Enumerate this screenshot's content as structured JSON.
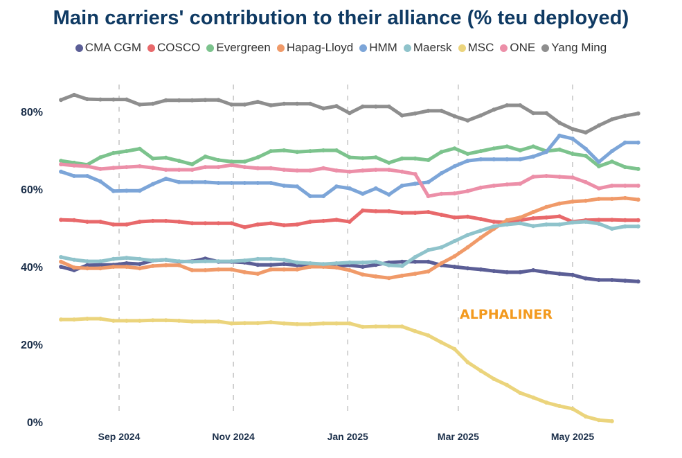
{
  "chart_data": {
    "type": "line",
    "title": "Main carriers' contribution to their alliance (% teu deployed)",
    "xlabel": "",
    "ylabel": "",
    "ylim": [
      0,
      90
    ],
    "y_ticks": [
      "0%",
      "20%",
      "40%",
      "60%",
      "80%"
    ],
    "y_tick_values": [
      0,
      20,
      40,
      60,
      80
    ],
    "x_ticks": [
      "Sep 2024",
      "Nov 2024",
      "Jan 2025",
      "Mar 2025",
      "May 2025"
    ],
    "x_tick_dates": [
      "2024-09-01",
      "2024-11-01",
      "2025-01-01",
      "2025-03-01",
      "2025-05-01"
    ],
    "grid": "vertical dashed lines at x ticks",
    "legend_position": "top",
    "watermark": "ALPHALINER",
    "x": [
      "2024-08-01",
      "2024-08-08",
      "2024-08-15",
      "2024-08-22",
      "2024-08-29",
      "2024-09-05",
      "2024-09-12",
      "2024-09-19",
      "2024-09-26",
      "2024-10-03",
      "2024-10-10",
      "2024-10-17",
      "2024-10-24",
      "2024-10-31",
      "2024-11-07",
      "2024-11-14",
      "2024-11-21",
      "2024-11-28",
      "2024-12-05",
      "2024-12-12",
      "2024-12-19",
      "2024-12-26",
      "2025-01-02",
      "2025-01-09",
      "2025-01-16",
      "2025-01-23",
      "2025-01-30",
      "2025-02-06",
      "2025-02-13",
      "2025-02-20",
      "2025-02-27",
      "2025-03-06",
      "2025-03-13",
      "2025-03-20",
      "2025-03-27",
      "2025-04-03",
      "2025-04-10",
      "2025-04-17",
      "2025-04-24",
      "2025-05-01",
      "2025-05-08",
      "2025-05-15",
      "2025-05-22",
      "2025-05-29",
      "2025-06-05"
    ],
    "series": [
      {
        "name": "CMA CGM",
        "color": "#5b5e96",
        "values": [
          40.0,
          39.1,
          40.4,
          40.5,
          40.5,
          40.9,
          40.7,
          41.6,
          41.8,
          41.3,
          41.4,
          42.1,
          41.3,
          41.3,
          41.1,
          40.5,
          40.5,
          40.7,
          40.4,
          40.4,
          40.2,
          40.2,
          40.4,
          40.0,
          40.5,
          41.1,
          41.3,
          41.3,
          41.3,
          40.4,
          40.0,
          39.6,
          39.3,
          38.9,
          38.6,
          38.6,
          39.1,
          38.6,
          38.2,
          37.9,
          37.0,
          36.6,
          36.6,
          36.4,
          36.2
        ]
      },
      {
        "name": "COSCO",
        "color": "#e8696b",
        "values": [
          52.1,
          52.0,
          51.6,
          51.6,
          50.9,
          50.9,
          51.6,
          51.8,
          51.8,
          51.6,
          51.2,
          51.2,
          51.2,
          51.2,
          50.2,
          50.9,
          51.2,
          50.7,
          50.9,
          51.6,
          51.8,
          52.1,
          51.6,
          54.5,
          54.3,
          54.3,
          53.9,
          53.9,
          54.1,
          53.4,
          52.7,
          52.9,
          52.3,
          51.6,
          51.4,
          52.0,
          52.5,
          52.7,
          53.0,
          51.6,
          52.0,
          52.1,
          52.1,
          52.0,
          52.0
        ]
      },
      {
        "name": "Evergreen",
        "color": "#7cc38d",
        "values": [
          67.3,
          66.8,
          66.3,
          68.2,
          69.3,
          69.8,
          70.4,
          67.9,
          68.1,
          67.3,
          66.4,
          68.4,
          67.5,
          67.1,
          67.1,
          68.2,
          69.8,
          70.0,
          69.6,
          69.8,
          70.0,
          70.0,
          68.2,
          68.0,
          68.2,
          66.8,
          67.9,
          67.9,
          67.5,
          69.6,
          70.5,
          69.1,
          69.8,
          70.5,
          71.0,
          70.0,
          71.0,
          69.8,
          70.2,
          69.1,
          68.6,
          65.9,
          67.1,
          65.7,
          65.2
        ]
      },
      {
        "name": "Hapag-Lloyd",
        "color": "#f09a69",
        "values": [
          41.3,
          39.8,
          39.6,
          39.6,
          40.0,
          40.0,
          39.6,
          40.2,
          40.4,
          40.4,
          39.1,
          39.1,
          39.3,
          39.3,
          38.6,
          38.2,
          39.3,
          39.3,
          39.3,
          40.0,
          40.0,
          39.8,
          39.1,
          38.0,
          37.5,
          37.1,
          37.7,
          38.2,
          38.8,
          40.9,
          42.7,
          45.0,
          47.5,
          49.8,
          52.0,
          52.7,
          54.1,
          55.4,
          56.3,
          56.8,
          57.0,
          57.5,
          57.5,
          57.7,
          57.3
        ]
      },
      {
        "name": "HMM",
        "color": "#7ca5d8",
        "values": [
          64.5,
          63.4,
          63.4,
          62.0,
          59.5,
          59.6,
          59.6,
          61.3,
          62.7,
          61.8,
          61.8,
          61.8,
          61.6,
          61.6,
          61.6,
          61.6,
          61.6,
          60.9,
          60.7,
          58.2,
          58.2,
          60.7,
          60.2,
          58.8,
          60.2,
          58.6,
          60.9,
          61.4,
          61.8,
          64.1,
          65.9,
          67.3,
          67.7,
          67.7,
          67.7,
          67.7,
          68.4,
          69.6,
          73.8,
          73.0,
          70.4,
          67.0,
          69.8,
          72.0,
          72.0
        ]
      },
      {
        "name": "Maersk",
        "color": "#8fc3cb",
        "values": [
          42.5,
          41.8,
          41.4,
          41.4,
          42.0,
          42.3,
          42.0,
          41.6,
          41.8,
          41.4,
          41.3,
          41.4,
          41.4,
          41.4,
          41.6,
          42.0,
          42.0,
          41.8,
          41.1,
          40.9,
          40.7,
          40.9,
          41.1,
          41.1,
          41.3,
          40.4,
          40.2,
          42.5,
          44.3,
          45.0,
          46.6,
          48.2,
          49.3,
          50.4,
          50.9,
          51.2,
          50.5,
          50.9,
          50.9,
          51.4,
          51.6,
          51.1,
          49.8,
          50.4,
          50.4
        ]
      },
      {
        "name": "MSC",
        "color": "#ebd47c",
        "values": [
          26.4,
          26.4,
          26.6,
          26.6,
          26.1,
          26.1,
          26.1,
          26.2,
          26.2,
          26.1,
          25.9,
          25.9,
          25.9,
          25.4,
          25.5,
          25.5,
          25.7,
          25.4,
          25.2,
          25.2,
          25.4,
          25.4,
          25.4,
          24.5,
          24.6,
          24.6,
          24.6,
          23.4,
          22.3,
          20.5,
          18.8,
          15.4,
          13.2,
          11.1,
          9.5,
          7.5,
          6.3,
          5.0,
          4.1,
          3.4,
          1.4,
          0.5,
          0.2,
          null,
          null
        ]
      },
      {
        "name": "ONE",
        "color": "#ec8fa8",
        "values": [
          66.4,
          66.1,
          65.9,
          65.2,
          65.5,
          65.7,
          65.9,
          65.5,
          65.0,
          65.0,
          65.0,
          65.7,
          65.7,
          66.2,
          65.7,
          65.4,
          65.4,
          65.0,
          64.8,
          64.8,
          65.4,
          64.8,
          64.5,
          64.8,
          65.0,
          65.0,
          64.5,
          63.9,
          58.2,
          58.8,
          58.9,
          59.5,
          60.4,
          60.9,
          61.2,
          61.4,
          63.2,
          63.4,
          63.2,
          63.0,
          61.8,
          60.2,
          60.9,
          60.9,
          60.9
        ]
      },
      {
        "name": "Yang Ming",
        "color": "#8e8e8e",
        "values": [
          83.0,
          84.3,
          83.2,
          83.1,
          83.1,
          83.1,
          81.8,
          82.0,
          82.9,
          82.9,
          82.9,
          83.0,
          83.0,
          81.8,
          81.8,
          82.5,
          81.6,
          82.0,
          82.0,
          82.0,
          80.8,
          81.4,
          79.6,
          81.3,
          81.3,
          81.3,
          79.0,
          79.5,
          80.2,
          80.2,
          78.8,
          77.7,
          79.0,
          80.5,
          81.6,
          81.6,
          79.6,
          79.6,
          77.1,
          75.5,
          74.6,
          76.4,
          78.0,
          78.9,
          79.5
        ]
      }
    ]
  }
}
